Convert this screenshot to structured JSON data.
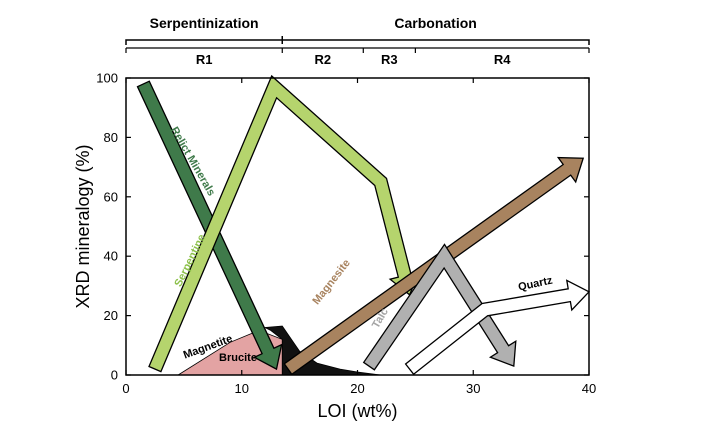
{
  "chart_data": {
    "type": "schematic-arrows",
    "xlabel": "LOI (wt%)",
    "ylabel": "XRD mineralogy (%)",
    "xlim": [
      0,
      40
    ],
    "ylim": [
      0,
      100
    ],
    "xticks": [
      0,
      10,
      20,
      30,
      40
    ],
    "yticks": [
      0,
      20,
      40,
      60,
      80,
      100
    ],
    "stages": [
      {
        "label": "Serpentinization",
        "from": 0,
        "to": 13.5
      },
      {
        "label": "Carbonation",
        "from": 13.5,
        "to": 40
      }
    ],
    "regions": [
      {
        "label": "R1",
        "from": 0,
        "to": 13.5
      },
      {
        "label": "R2",
        "from": 13.5,
        "to": 20.5
      },
      {
        "label": "R3",
        "from": 20.5,
        "to": 25
      },
      {
        "label": "R4",
        "from": 25,
        "to": 40
      }
    ],
    "areas": [
      {
        "name": "Brucite",
        "color": "#e3a3a3",
        "points": [
          [
            4.5,
            0
          ],
          [
            9,
            11
          ],
          [
            11.5,
            15
          ],
          [
            13.5,
            12
          ],
          [
            13.5,
            0
          ]
        ]
      },
      {
        "name": "Magnetite",
        "color": "#111111",
        "points": [
          [
            12,
            16
          ],
          [
            13.5,
            16.5
          ],
          [
            15,
            8
          ],
          [
            16.5,
            4
          ],
          [
            18.5,
            2
          ],
          [
            20,
            1
          ],
          [
            22,
            0
          ],
          [
            13.5,
            0
          ],
          [
            13.5,
            12
          ],
          [
            12.5,
            15
          ]
        ]
      }
    ],
    "arrows": [
      {
        "name": "Relict Minerals",
        "color": "#3f7a4a",
        "text_color": "#3f7a4a",
        "points": [
          [
            1.5,
            98
          ],
          [
            13,
            2
          ]
        ]
      },
      {
        "name": "Serpentine",
        "color": "#b5d46d",
        "text_color": "#8cc04a",
        "points": [
          [
            2.5,
            2
          ],
          [
            12.8,
            97
          ],
          [
            22,
            65
          ],
          [
            24.5,
            27
          ]
        ]
      },
      {
        "name": "Magnesite",
        "color": "#a8835f",
        "text_color": "#a8835f",
        "points": [
          [
            14,
            2
          ],
          [
            39.5,
            73
          ]
        ]
      },
      {
        "name": "Talc",
        "color": "#b0b0b0",
        "text_color": "#a5a5a5",
        "points": [
          [
            21,
            3
          ],
          [
            27.5,
            40
          ],
          [
            33.5,
            3
          ]
        ]
      },
      {
        "name": "Quartz",
        "color": "#ffffff",
        "text_color": "#000000",
        "points": [
          [
            24.5,
            2
          ],
          [
            31,
            22
          ],
          [
            40,
            28
          ]
        ]
      }
    ]
  }
}
